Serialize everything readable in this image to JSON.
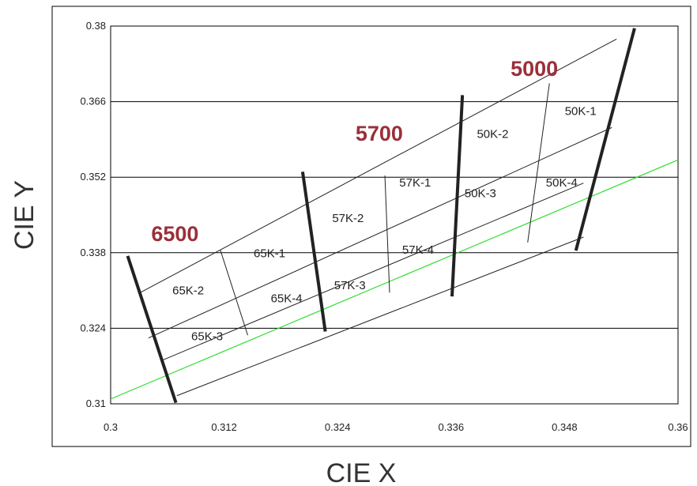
{
  "chart_data": {
    "type": "line",
    "title": "",
    "xlabel": "CIE X",
    "ylabel": "CIE Y",
    "xlim": [
      0.3,
      0.36
    ],
    "ylim": [
      0.31,
      0.38
    ],
    "x_ticks": [
      "0.3",
      "0.312",
      "0.324",
      "0.336",
      "0.348",
      "0.36"
    ],
    "y_ticks": [
      "0.31",
      "0.324",
      "0.338",
      "0.352",
      "0.366",
      "0.38"
    ],
    "grid": "horizontal",
    "colors": {
      "frame": "#000000",
      "grid": "#000000",
      "blackbody": "#33dd33",
      "cct_text": "#9b2f3a",
      "boundary": "#222222"
    },
    "blackbody_line": {
      "name": "",
      "x": [
        0.3,
        0.36
      ],
      "y": [
        0.3109,
        0.3552
      ]
    },
    "bin_band_lines": [
      {
        "x": [
          0.303,
          0.3535
        ],
        "y": [
          0.3305,
          0.3776
        ]
      },
      {
        "x": [
          0.304,
          0.353
        ],
        "y": [
          0.3222,
          0.3612
        ]
      },
      {
        "x": [
          0.3055,
          0.35
        ],
        "y": [
          0.3181,
          0.3509
        ]
      },
      {
        "x": [
          0.307,
          0.35
        ],
        "y": [
          0.3115,
          0.3409
        ]
      }
    ],
    "cct_lines": [
      {
        "label": "6500",
        "x": [
          0.3018,
          0.3069
        ],
        "y": [
          0.3374,
          0.3102
        ]
      },
      {
        "label": "5700",
        "x": [
          0.3203,
          0.3227
        ],
        "y": [
          0.353,
          0.3234
        ]
      },
      {
        "label": "5000",
        "x": [
          0.3361,
          0.3372
        ],
        "y": [
          0.3299,
          0.3672
        ]
      },
      {
        "label": "5000",
        "x": [
          0.3492,
          0.3554
        ],
        "y": [
          0.3384,
          0.3796
        ]
      }
    ],
    "bin_dividers": [
      {
        "x": [
          0.3116,
          0.3145
        ],
        "y": [
          0.3385,
          0.3227
        ]
      },
      {
        "x": [
          0.329,
          0.3295
        ],
        "y": [
          0.3523,
          0.3306
        ]
      },
      {
        "x": [
          0.3464,
          0.3441
        ],
        "y": [
          0.3694,
          0.3399
        ]
      }
    ],
    "cct_labels": [
      {
        "text": "6500",
        "x": 0.3068,
        "y": 0.3402
      },
      {
        "text": "5700",
        "x": 0.3284,
        "y": 0.3588
      },
      {
        "text": "5000",
        "x": 0.3448,
        "y": 0.3708
      }
    ],
    "bin_labels": [
      {
        "text": "65K-1",
        "x": 0.3168,
        "y": 0.3372
      },
      {
        "text": "65K-2",
        "x": 0.3082,
        "y": 0.3303
      },
      {
        "text": "65K-3",
        "x": 0.3102,
        "y": 0.3218
      },
      {
        "text": "65K-4",
        "x": 0.3186,
        "y": 0.3288
      },
      {
        "text": "57K-1",
        "x": 0.3322,
        "y": 0.3503
      },
      {
        "text": "57K-2",
        "x": 0.3251,
        "y": 0.3437
      },
      {
        "text": "57K-3",
        "x": 0.3253,
        "y": 0.3312
      },
      {
        "text": "57K-4",
        "x": 0.3325,
        "y": 0.3378
      },
      {
        "text": "50K-1",
        "x": 0.3497,
        "y": 0.3635
      },
      {
        "text": "50K-2",
        "x": 0.3404,
        "y": 0.3593
      },
      {
        "text": "50K-3",
        "x": 0.3391,
        "y": 0.3483
      },
      {
        "text": "50K-4",
        "x": 0.3477,
        "y": 0.3503
      }
    ]
  }
}
